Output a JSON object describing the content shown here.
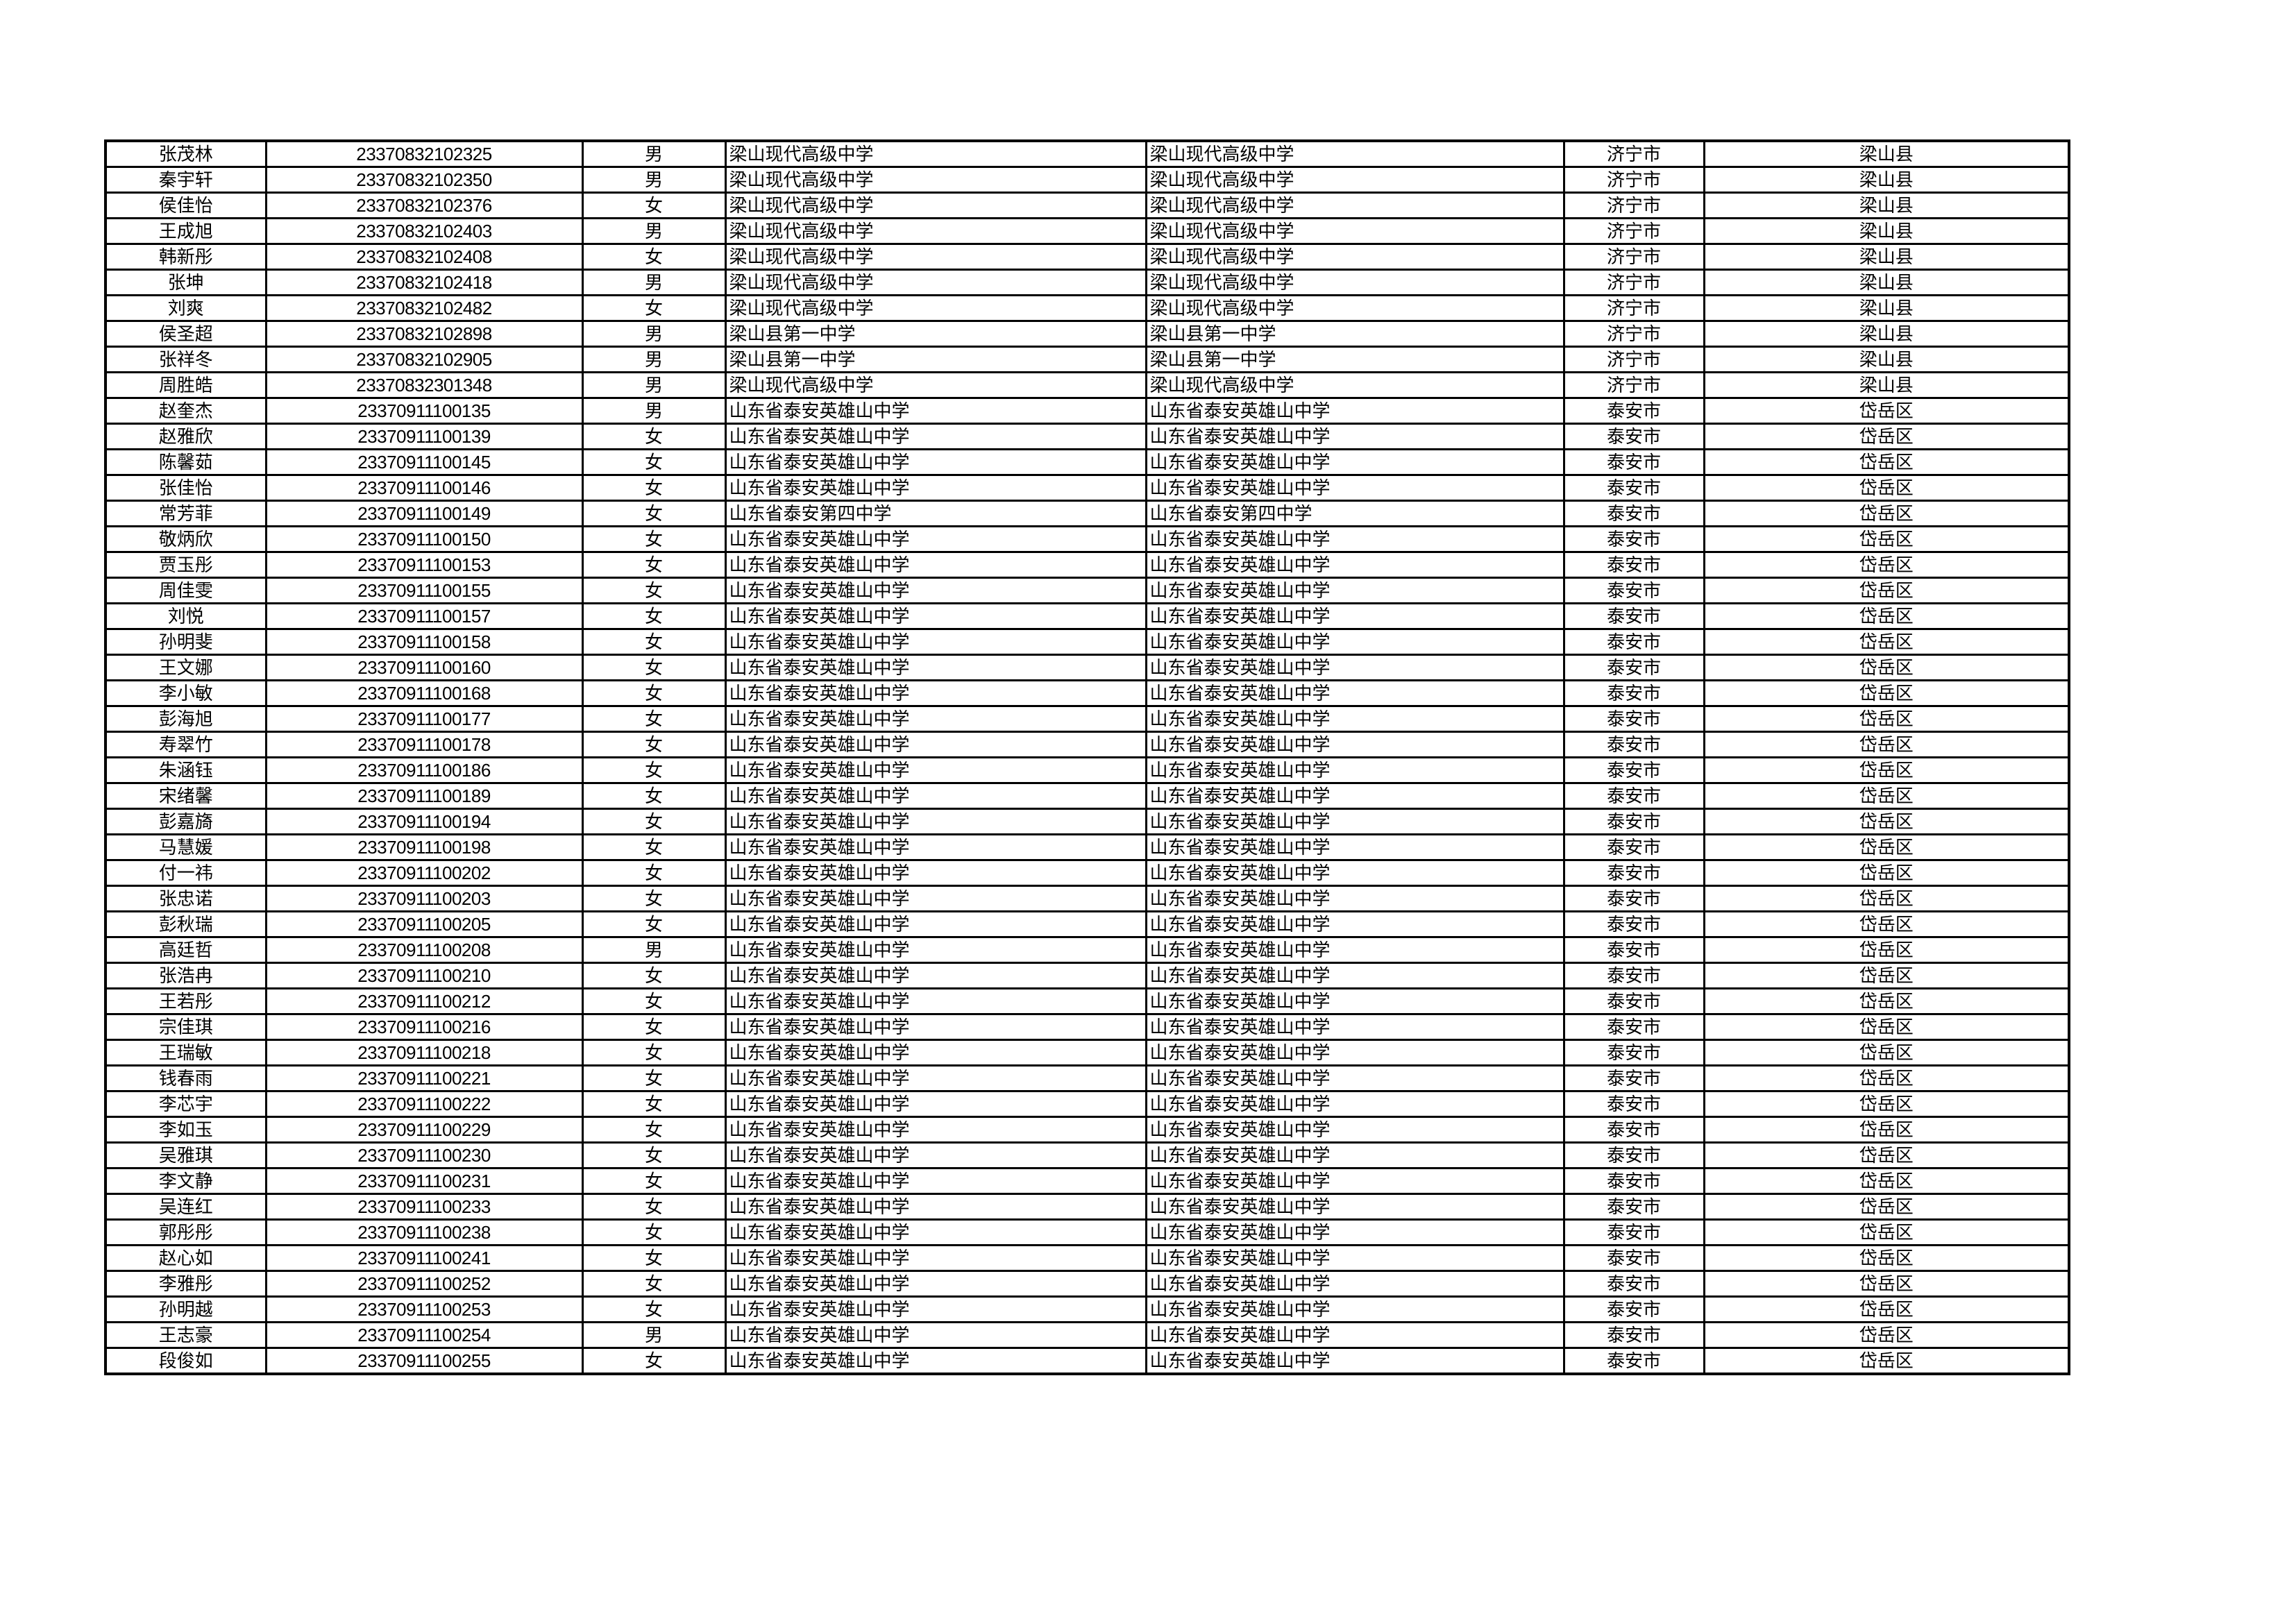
{
  "rows": [
    [
      "张茂林",
      "23370832102325",
      "男",
      "梁山现代高级中学",
      "梁山现代高级中学",
      "济宁市",
      "梁山县"
    ],
    [
      "秦宇轩",
      "23370832102350",
      "男",
      "梁山现代高级中学",
      "梁山现代高级中学",
      "济宁市",
      "梁山县"
    ],
    [
      "侯佳怡",
      "23370832102376",
      "女",
      "梁山现代高级中学",
      "梁山现代高级中学",
      "济宁市",
      "梁山县"
    ],
    [
      "王成旭",
      "23370832102403",
      "男",
      "梁山现代高级中学",
      "梁山现代高级中学",
      "济宁市",
      "梁山县"
    ],
    [
      "韩新彤",
      "23370832102408",
      "女",
      "梁山现代高级中学",
      "梁山现代高级中学",
      "济宁市",
      "梁山县"
    ],
    [
      "张坤",
      "23370832102418",
      "男",
      "梁山现代高级中学",
      "梁山现代高级中学",
      "济宁市",
      "梁山县"
    ],
    [
      "刘爽",
      "23370832102482",
      "女",
      "梁山现代高级中学",
      "梁山现代高级中学",
      "济宁市",
      "梁山县"
    ],
    [
      "侯圣超",
      "23370832102898",
      "男",
      "梁山县第一中学",
      "梁山县第一中学",
      "济宁市",
      "梁山县"
    ],
    [
      "张祥冬",
      "23370832102905",
      "男",
      "梁山县第一中学",
      "梁山县第一中学",
      "济宁市",
      "梁山县"
    ],
    [
      "周胜皓",
      "23370832301348",
      "男",
      "梁山现代高级中学",
      "梁山现代高级中学",
      "济宁市",
      "梁山县"
    ],
    [
      "赵奎杰",
      "23370911100135",
      "男",
      "山东省泰安英雄山中学",
      "山东省泰安英雄山中学",
      "泰安市",
      "岱岳区"
    ],
    [
      "赵雅欣",
      "23370911100139",
      "女",
      "山东省泰安英雄山中学",
      "山东省泰安英雄山中学",
      "泰安市",
      "岱岳区"
    ],
    [
      "陈馨茹",
      "23370911100145",
      "女",
      "山东省泰安英雄山中学",
      "山东省泰安英雄山中学",
      "泰安市",
      "岱岳区"
    ],
    [
      "张佳怡",
      "23370911100146",
      "女",
      "山东省泰安英雄山中学",
      "山东省泰安英雄山中学",
      "泰安市",
      "岱岳区"
    ],
    [
      "常芳菲",
      "23370911100149",
      "女",
      "山东省泰安第四中学",
      "山东省泰安第四中学",
      "泰安市",
      "岱岳区"
    ],
    [
      "敬炳欣",
      "23370911100150",
      "女",
      "山东省泰安英雄山中学",
      "山东省泰安英雄山中学",
      "泰安市",
      "岱岳区"
    ],
    [
      "贾玉彤",
      "23370911100153",
      "女",
      "山东省泰安英雄山中学",
      "山东省泰安英雄山中学",
      "泰安市",
      "岱岳区"
    ],
    [
      "周佳雯",
      "23370911100155",
      "女",
      "山东省泰安英雄山中学",
      "山东省泰安英雄山中学",
      "泰安市",
      "岱岳区"
    ],
    [
      "刘悦",
      "23370911100157",
      "女",
      "山东省泰安英雄山中学",
      "山东省泰安英雄山中学",
      "泰安市",
      "岱岳区"
    ],
    [
      "孙明斐",
      "23370911100158",
      "女",
      "山东省泰安英雄山中学",
      "山东省泰安英雄山中学",
      "泰安市",
      "岱岳区"
    ],
    [
      "王文娜",
      "23370911100160",
      "女",
      "山东省泰安英雄山中学",
      "山东省泰安英雄山中学",
      "泰安市",
      "岱岳区"
    ],
    [
      "李小敏",
      "23370911100168",
      "女",
      "山东省泰安英雄山中学",
      "山东省泰安英雄山中学",
      "泰安市",
      "岱岳区"
    ],
    [
      "彭海旭",
      "23370911100177",
      "女",
      "山东省泰安英雄山中学",
      "山东省泰安英雄山中学",
      "泰安市",
      "岱岳区"
    ],
    [
      "寿翠竹",
      "23370911100178",
      "女",
      "山东省泰安英雄山中学",
      "山东省泰安英雄山中学",
      "泰安市",
      "岱岳区"
    ],
    [
      "朱涵钰",
      "23370911100186",
      "女",
      "山东省泰安英雄山中学",
      "山东省泰安英雄山中学",
      "泰安市",
      "岱岳区"
    ],
    [
      "宋绪馨",
      "23370911100189",
      "女",
      "山东省泰安英雄山中学",
      "山东省泰安英雄山中学",
      "泰安市",
      "岱岳区"
    ],
    [
      "彭嘉旖",
      "23370911100194",
      "女",
      "山东省泰安英雄山中学",
      "山东省泰安英雄山中学",
      "泰安市",
      "岱岳区"
    ],
    [
      "马慧媛",
      "23370911100198",
      "女",
      "山东省泰安英雄山中学",
      "山东省泰安英雄山中学",
      "泰安市",
      "岱岳区"
    ],
    [
      "付一祎",
      "23370911100202",
      "女",
      "山东省泰安英雄山中学",
      "山东省泰安英雄山中学",
      "泰安市",
      "岱岳区"
    ],
    [
      "张忠诺",
      "23370911100203",
      "女",
      "山东省泰安英雄山中学",
      "山东省泰安英雄山中学",
      "泰安市",
      "岱岳区"
    ],
    [
      "彭秋瑞",
      "23370911100205",
      "女",
      "山东省泰安英雄山中学",
      "山东省泰安英雄山中学",
      "泰安市",
      "岱岳区"
    ],
    [
      "高廷哲",
      "23370911100208",
      "男",
      "山东省泰安英雄山中学",
      "山东省泰安英雄山中学",
      "泰安市",
      "岱岳区"
    ],
    [
      "张浩冉",
      "23370911100210",
      "女",
      "山东省泰安英雄山中学",
      "山东省泰安英雄山中学",
      "泰安市",
      "岱岳区"
    ],
    [
      "王若彤",
      "23370911100212",
      "女",
      "山东省泰安英雄山中学",
      "山东省泰安英雄山中学",
      "泰安市",
      "岱岳区"
    ],
    [
      "宗佳琪",
      "23370911100216",
      "女",
      "山东省泰安英雄山中学",
      "山东省泰安英雄山中学",
      "泰安市",
      "岱岳区"
    ],
    [
      "王瑞敏",
      "23370911100218",
      "女",
      "山东省泰安英雄山中学",
      "山东省泰安英雄山中学",
      "泰安市",
      "岱岳区"
    ],
    [
      "钱春雨",
      "23370911100221",
      "女",
      "山东省泰安英雄山中学",
      "山东省泰安英雄山中学",
      "泰安市",
      "岱岳区"
    ],
    [
      "李芯宇",
      "23370911100222",
      "女",
      "山东省泰安英雄山中学",
      "山东省泰安英雄山中学",
      "泰安市",
      "岱岳区"
    ],
    [
      "李如玉",
      "23370911100229",
      "女",
      "山东省泰安英雄山中学",
      "山东省泰安英雄山中学",
      "泰安市",
      "岱岳区"
    ],
    [
      "吴雅琪",
      "23370911100230",
      "女",
      "山东省泰安英雄山中学",
      "山东省泰安英雄山中学",
      "泰安市",
      "岱岳区"
    ],
    [
      "李文静",
      "23370911100231",
      "女",
      "山东省泰安英雄山中学",
      "山东省泰安英雄山中学",
      "泰安市",
      "岱岳区"
    ],
    [
      "吴连红",
      "23370911100233",
      "女",
      "山东省泰安英雄山中学",
      "山东省泰安英雄山中学",
      "泰安市",
      "岱岳区"
    ],
    [
      "郭彤彤",
      "23370911100238",
      "女",
      "山东省泰安英雄山中学",
      "山东省泰安英雄山中学",
      "泰安市",
      "岱岳区"
    ],
    [
      "赵心如",
      "23370911100241",
      "女",
      "山东省泰安英雄山中学",
      "山东省泰安英雄山中学",
      "泰安市",
      "岱岳区"
    ],
    [
      "李雅彤",
      "23370911100252",
      "女",
      "山东省泰安英雄山中学",
      "山东省泰安英雄山中学",
      "泰安市",
      "岱岳区"
    ],
    [
      "孙明越",
      "23370911100253",
      "女",
      "山东省泰安英雄山中学",
      "山东省泰安英雄山中学",
      "泰安市",
      "岱岳区"
    ],
    [
      "王志豪",
      "23370911100254",
      "男",
      "山东省泰安英雄山中学",
      "山东省泰安英雄山中学",
      "泰安市",
      "岱岳区"
    ],
    [
      "段俊如",
      "23370911100255",
      "女",
      "山东省泰安英雄山中学",
      "山东省泰安英雄山中学",
      "泰安市",
      "岱岳区"
    ]
  ]
}
